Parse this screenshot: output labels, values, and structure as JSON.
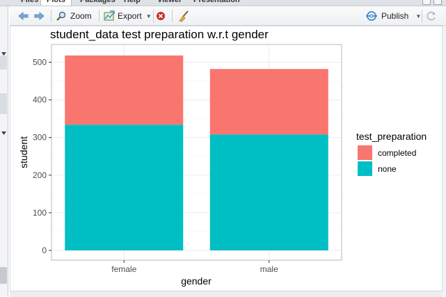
{
  "tabs": [
    {
      "label": "Files",
      "active": false
    },
    {
      "label": "Plots",
      "active": true
    },
    {
      "label": "Packages",
      "active": false
    },
    {
      "label": "Help",
      "active": false
    },
    {
      "label": "Viewer",
      "active": false
    },
    {
      "label": "Presentation",
      "active": false
    }
  ],
  "toolbar": {
    "zoom_label": "Zoom",
    "export_label": "Export",
    "publish_label": "Publish"
  },
  "colors": {
    "completed": "#F8766D",
    "none": "#00BFC4",
    "panel_bg": "#ffffff",
    "grid": "#ebebeb",
    "accent_blue": "#4a8fd4"
  },
  "chart_data": {
    "type": "bar",
    "stacked": true,
    "title": "student_data test preparation w.r.t gender",
    "xlabel": "gender",
    "ylabel": "student",
    "categories": [
      "female",
      "male"
    ],
    "ylim": [
      0,
      540
    ],
    "yticks": [
      0,
      100,
      200,
      300,
      400,
      500
    ],
    "grid": true,
    "legend": {
      "title": "test_preparation",
      "placement": "right",
      "entries": [
        "completed",
        "none"
      ]
    },
    "series": [
      {
        "name": "none",
        "values": [
          334,
          308
        ]
      },
      {
        "name": "completed",
        "values": [
          184,
          174
        ]
      }
    ]
  }
}
